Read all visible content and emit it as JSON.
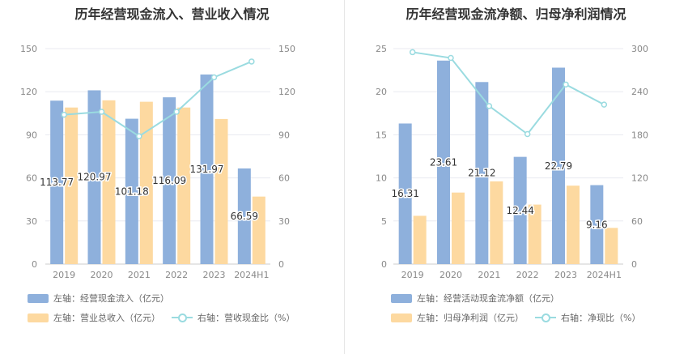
{
  "chart_data": [
    {
      "type": "bar",
      "title": "历年经营现金流入、营业收入情况",
      "categories": [
        "2019",
        "2020",
        "2021",
        "2022",
        "2023",
        "2024H1"
      ],
      "series": [
        {
          "name": "左轴：经营现金流入（亿元）",
          "axis": "left",
          "kind": "bar",
          "color": "#8eb0dc",
          "values": [
            113.77,
            120.97,
            101.18,
            116.09,
            131.97,
            66.59
          ],
          "labels_shown": true
        },
        {
          "name": "左轴：营业总收入（亿元）",
          "axis": "left",
          "kind": "bar",
          "color": "#fdd9a0",
          "values": [
            109,
            114,
            113,
            109,
            101,
            47
          ],
          "labels_shown": false
        },
        {
          "name": "右轴：营收现金比（%）",
          "axis": "right",
          "kind": "line",
          "color": "#9adbe0",
          "values": [
            104,
            106,
            89,
            106,
            130,
            141
          ],
          "labels_shown": false
        }
      ],
      "left_axis": {
        "min": 0,
        "max": 150,
        "ticks": [
          0,
          30,
          60,
          90,
          120,
          150
        ]
      },
      "right_axis": {
        "min": 0,
        "max": 150,
        "ticks": [
          0,
          30,
          60,
          90,
          120,
          150
        ]
      },
      "grid": true,
      "legend_position": "bottom-left"
    },
    {
      "type": "bar",
      "title": "历年经营现金流净额、归母净利润情况",
      "categories": [
        "2019",
        "2020",
        "2021",
        "2022",
        "2023",
        "2024H1"
      ],
      "series": [
        {
          "name": "左轴：经营活动现金流净额（亿元）",
          "axis": "left",
          "kind": "bar",
          "color": "#8eb0dc",
          "values": [
            16.31,
            23.61,
            21.12,
            12.44,
            22.79,
            9.16
          ],
          "labels_shown": true
        },
        {
          "name": "左轴：归母净利润（亿元）",
          "axis": "left",
          "kind": "bar",
          "color": "#fdd9a0",
          "values": [
            5.6,
            8.3,
            9.6,
            6.9,
            9.1,
            4.2
          ],
          "labels_shown": false
        },
        {
          "name": "右轴：净现比（%）",
          "axis": "right",
          "kind": "line",
          "color": "#9adbe0",
          "values": [
            295,
            287,
            220,
            181,
            250,
            222
          ],
          "labels_shown": false
        }
      ],
      "left_axis": {
        "min": 0,
        "max": 25,
        "ticks": [
          0,
          5,
          10,
          15,
          20,
          25
        ]
      },
      "right_axis": {
        "min": 0,
        "max": 300,
        "ticks": [
          0,
          60,
          120,
          180,
          240,
          300
        ]
      },
      "grid": true,
      "legend_position": "bottom-left"
    }
  ]
}
